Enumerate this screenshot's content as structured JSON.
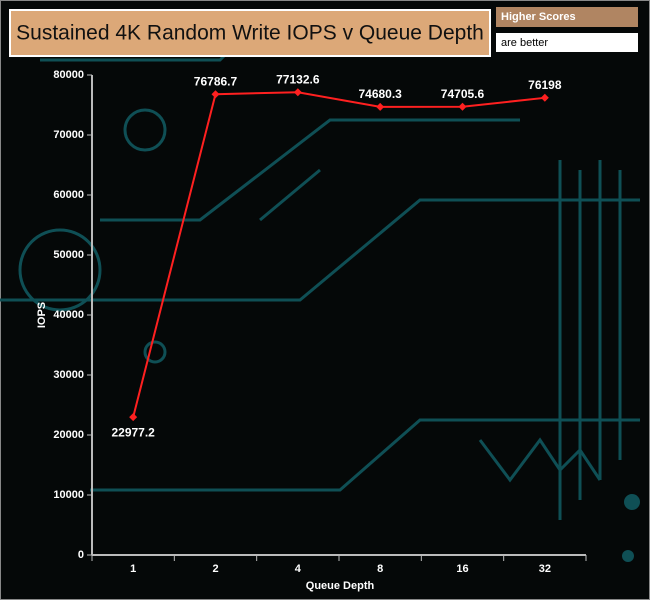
{
  "chart_data": {
    "type": "line",
    "title": "Sustained 4K Random Write IOPS v Queue Depth",
    "annotations": [
      "Higher Scores",
      "are better"
    ],
    "x_label": "Queue Depth",
    "y_label": "IOPS",
    "categories": [
      "1",
      "2",
      "4",
      "8",
      "16",
      "32"
    ],
    "series": [
      {
        "name": "IOPS",
        "color": "#ff2020",
        "values": [
          22977.2,
          76786.7,
          77132.6,
          74680.3,
          74705.6,
          76198
        ]
      }
    ],
    "ylim": [
      0,
      80000
    ],
    "yticks": [
      0,
      10000,
      20000,
      30000,
      40000,
      50000,
      60000,
      70000,
      80000
    ]
  }
}
